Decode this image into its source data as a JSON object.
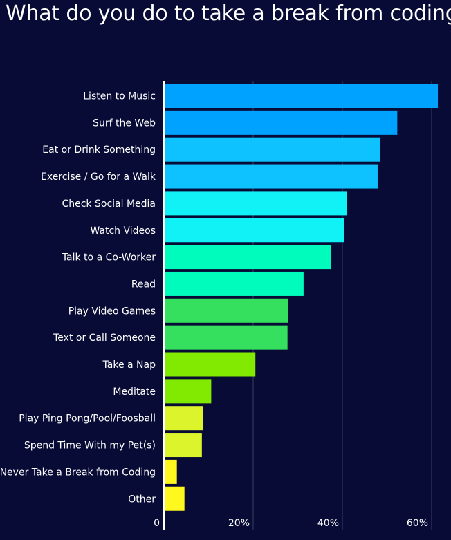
{
  "chart_data": {
    "type": "bar",
    "orientation": "horizontal",
    "title": "What do you do to take a break from coding?",
    "xlabel": "",
    "ylabel": "",
    "xlim": [
      0,
      62
    ],
    "xticks": [
      0,
      20,
      40,
      60
    ],
    "xtick_labels": [
      "0",
      "20%",
      "40%",
      "60%"
    ],
    "grid": true,
    "categories": [
      "Listen to Music",
      "Surf the Web",
      "Eat or Drink Something",
      "Exercise / Go for a Walk",
      "Check Social Media",
      "Watch Videos",
      "Talk to a Co-Worker",
      "Read",
      "Play Video Games",
      "Text or Call Someone",
      "Take a Nap",
      "Meditate",
      "Play Ping Pong/Pool/Foosball",
      "Spend Time With my Pet(s)",
      "Never Take a Break from Coding",
      "Other"
    ],
    "values": [
      61.4,
      52.3,
      48.5,
      47.9,
      41.0,
      40.4,
      37.4,
      31.3,
      27.8,
      27.7,
      20.5,
      10.6,
      8.8,
      8.5,
      2.9,
      4.6
    ],
    "colors": [
      "#00a2ff",
      "#00a2ff",
      "#0ec2ff",
      "#0ec2ff",
      "#10f2f6",
      "#10f2f6",
      "#00fcbd",
      "#00fcbd",
      "#34e05d",
      "#34e05d",
      "#82ea00",
      "#82ea00",
      "#dcf42b",
      "#dcf42b",
      "#fff81e",
      "#fff81e"
    ],
    "axis_color": "#ffffff",
    "grid_color": "#3a3f66"
  }
}
